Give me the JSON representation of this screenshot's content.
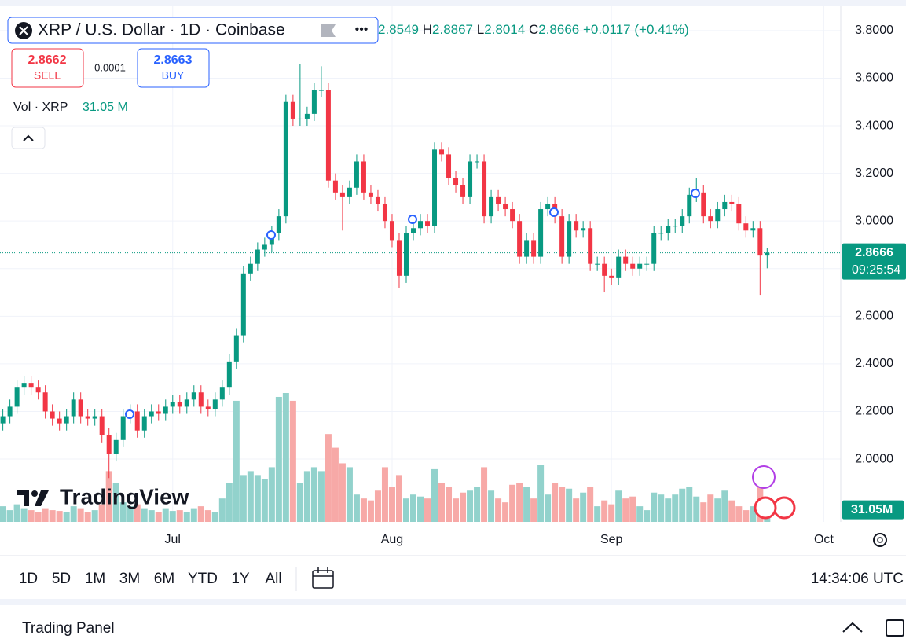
{
  "header": {
    "symbol_title": "XRP / U.S. Dollar · 1D · Coinbase",
    "high_prefix": "H",
    "low_prefix": "L",
    "close_prefix": "C",
    "change": "+0.0117 (+0.41%)"
  },
  "trade": {
    "sell_price": 2.8662,
    "sell_label": "SELL",
    "spread": 0.0001,
    "buy_price": 2.8663,
    "buy_label": "BUY"
  },
  "volume_legend": {
    "title": "Vol · XRP",
    "value": {
      "value": 31.05,
      "label": "31.05 M"
    }
  },
  "volume_tag": {
    "value": 31.05,
    "label": "31.05M"
  },
  "countdown": "09:25:54",
  "logo": "TradingView",
  "ranges": [
    "1D",
    "5D",
    "1M",
    "3M",
    "6M",
    "YTD",
    "1Y",
    "All"
  ],
  "clock": "14:34:06 UTC",
  "panel_title": "Trading Panel",
  "chart_data": {
    "type": "candlestick",
    "up_color": "#089981",
    "down_color": "#f23645",
    "volume_up_color": "#92d2cc",
    "volume_down_color": "#f7a9a7",
    "xlim": [
      -0.4,
      118.4
    ],
    "xticks": [
      {
        "value": 24,
        "label": "Jul"
      },
      {
        "value": 55,
        "label": "Aug"
      },
      {
        "value": 86,
        "label": "Sep"
      },
      {
        "value": 116,
        "label": "Oct"
      }
    ],
    "ylim": [
      1.736,
      3.902
    ],
    "yticks": [
      {
        "value": 2.0,
        "label": "2.0000"
      },
      {
        "value": 2.2,
        "label": "2.2000"
      },
      {
        "value": 2.4,
        "label": "2.4000"
      },
      {
        "value": 2.6,
        "label": "2.6000"
      },
      {
        "value": 2.8,
        "label": "2.8000"
      },
      {
        "value": 3.0,
        "label": "3.0000"
      },
      {
        "value": 3.2,
        "label": "3.2000"
      },
      {
        "value": 3.4,
        "label": "3.4000"
      },
      {
        "value": 3.6,
        "label": "3.6000"
      },
      {
        "value": 3.8,
        "label": "3.8000"
      }
    ],
    "grid": true,
    "open": [
      2.15,
      2.18,
      2.22,
      2.3,
      2.32,
      2.3,
      2.28,
      2.2,
      2.17,
      2.15,
      2.18,
      2.25,
      2.18,
      2.17,
      2.18,
      2.1,
      2.02,
      2.08,
      2.18,
      2.2,
      2.12,
      2.18,
      2.2,
      2.19,
      2.22,
      2.24,
      2.22,
      2.25,
      2.28,
      2.22,
      2.21,
      2.25,
      2.3,
      2.41,
      2.52,
      2.78,
      2.82,
      2.88,
      2.9,
      2.95,
      3.02,
      3.5,
      3.43,
      3.43,
      3.45,
      3.55,
      3.55,
      3.17,
      3.12,
      3.1,
      3.14,
      3.25,
      3.12,
      3.1,
      3.07,
      3.0,
      2.92,
      2.77,
      2.95,
      2.97,
      3.0,
      2.98,
      3.3,
      3.28,
      3.18,
      3.15,
      3.1,
      3.25,
      3.25,
      3.02,
      3.1,
      3.07,
      3.05,
      3.0,
      2.85,
      2.92,
      2.85,
      3.05,
      3.07,
      3.02,
      2.85,
      3.0,
      2.96,
      2.97,
      2.82,
      2.82,
      2.77,
      2.76,
      2.85,
      2.82,
      2.8,
      2.82,
      2.82,
      2.95,
      2.95,
      2.98,
      2.98,
      3.02,
      3.11,
      3.12,
      3.02,
      3.0,
      3.05,
      3.08,
      3.07,
      2.99,
      2.96,
      2.97,
      2.8549
    ],
    "high": [
      2.21,
      2.25,
      2.33,
      2.35,
      2.35,
      2.33,
      2.31,
      2.23,
      2.2,
      2.21,
      2.28,
      2.28,
      2.21,
      2.21,
      2.21,
      2.13,
      2.11,
      2.21,
      2.23,
      2.23,
      2.21,
      2.23,
      2.23,
      2.25,
      2.27,
      2.27,
      2.28,
      2.31,
      2.31,
      2.25,
      2.28,
      2.33,
      2.44,
      2.55,
      2.81,
      2.85,
      2.91,
      2.93,
      2.98,
      3.05,
      3.53,
      3.53,
      3.66,
      3.48,
      3.58,
      3.65,
      3.58,
      3.2,
      3.15,
      3.17,
      3.28,
      3.28,
      3.15,
      3.13,
      3.1,
      3.03,
      2.95,
      2.98,
      3.0,
      3.03,
      3.03,
      3.33,
      3.33,
      3.31,
      3.21,
      3.18,
      3.28,
      3.28,
      3.28,
      3.13,
      3.13,
      3.1,
      3.08,
      3.03,
      2.95,
      2.95,
      3.08,
      3.1,
      3.1,
      3.05,
      3.03,
      3.03,
      3.0,
      3.0,
      2.85,
      2.85,
      2.8,
      2.88,
      2.88,
      2.85,
      2.85,
      2.85,
      2.98,
      2.98,
      3.01,
      3.01,
      3.05,
      3.14,
      3.18,
      3.15,
      3.05,
      3.08,
      3.11,
      3.11,
      3.1,
      3.02,
      3.0,
      3.0,
      2.8867
    ],
    "low": [
      2.12,
      2.15,
      2.19,
      2.27,
      2.27,
      2.25,
      2.17,
      2.14,
      2.12,
      2.12,
      2.15,
      2.15,
      2.14,
      2.14,
      2.07,
      1.92,
      1.99,
      2.05,
      2.15,
      2.09,
      2.09,
      2.15,
      2.16,
      2.16,
      2.19,
      2.19,
      2.19,
      2.22,
      2.19,
      2.18,
      2.18,
      2.22,
      2.27,
      2.38,
      2.49,
      2.75,
      2.79,
      2.85,
      2.87,
      2.92,
      2.99,
      3.4,
      3.4,
      3.4,
      3.42,
      3.52,
      3.14,
      3.09,
      2.96,
      3.07,
      3.11,
      3.09,
      3.07,
      3.04,
      2.97,
      2.89,
      2.72,
      2.74,
      2.92,
      2.94,
      2.95,
      2.95,
      3.25,
      3.15,
      3.12,
      3.07,
      3.07,
      3.22,
      2.99,
      2.99,
      3.04,
      3.02,
      2.97,
      2.82,
      2.82,
      2.82,
      2.82,
      3.02,
      2.99,
      2.82,
      2.82,
      2.93,
      2.93,
      2.79,
      2.79,
      2.7,
      2.73,
      2.73,
      2.79,
      2.77,
      2.77,
      2.79,
      2.79,
      2.92,
      2.92,
      2.95,
      2.95,
      2.99,
      3.08,
      2.99,
      2.97,
      2.97,
      3.02,
      3.04,
      2.96,
      2.93,
      2.93,
      2.69,
      2.8014
    ],
    "close": [
      2.18,
      2.22,
      2.3,
      2.32,
      2.3,
      2.28,
      2.2,
      2.17,
      2.15,
      2.18,
      2.25,
      2.18,
      2.17,
      2.18,
      2.1,
      2.02,
      2.08,
      2.18,
      2.2,
      2.12,
      2.18,
      2.2,
      2.19,
      2.22,
      2.24,
      2.22,
      2.25,
      2.28,
      2.22,
      2.21,
      2.25,
      2.3,
      2.41,
      2.52,
      2.78,
      2.82,
      2.88,
      2.9,
      2.95,
      3.02,
      3.5,
      3.43,
      3.43,
      3.45,
      3.55,
      3.55,
      3.17,
      3.12,
      3.1,
      3.14,
      3.25,
      3.12,
      3.1,
      3.07,
      3.0,
      2.92,
      2.77,
      2.95,
      2.97,
      3.0,
      2.98,
      3.3,
      3.28,
      3.18,
      3.15,
      3.1,
      3.25,
      3.25,
      3.02,
      3.1,
      3.07,
      3.05,
      3.0,
      2.85,
      2.92,
      2.85,
      3.05,
      3.07,
      3.02,
      2.85,
      3.0,
      2.96,
      2.97,
      2.82,
      2.82,
      2.77,
      2.76,
      2.85,
      2.82,
      2.8,
      2.82,
      2.82,
      2.95,
      2.95,
      2.98,
      2.98,
      3.02,
      3.11,
      3.12,
      3.02,
      3.0,
      3.05,
      3.08,
      3.07,
      2.99,
      2.96,
      2.97,
      2.8549,
      2.8666
    ],
    "volume": [
      40,
      30,
      45,
      35,
      30,
      25,
      35,
      30,
      28,
      25,
      40,
      35,
      25,
      30,
      45,
      130,
      100,
      50,
      40,
      45,
      35,
      30,
      25,
      35,
      28,
      30,
      25,
      35,
      40,
      30,
      25,
      60,
      100,
      310,
      120,
      130,
      120,
      110,
      140,
      320,
      330,
      310,
      100,
      130,
      140,
      130,
      225,
      190,
      150,
      140,
      70,
      60,
      55,
      80,
      140,
      90,
      120,
      60,
      70,
      65,
      60,
      135,
      100,
      90,
      60,
      75,
      80,
      90,
      140,
      80,
      60,
      50,
      95,
      100,
      90,
      60,
      145,
      70,
      100,
      90,
      85,
      60,
      75,
      90,
      40,
      55,
      45,
      80,
      60,
      65,
      40,
      30,
      75,
      70,
      60,
      70,
      85,
      90,
      65,
      50,
      70,
      60,
      80,
      55,
      40,
      30,
      40,
      105,
      31.05
    ]
  }
}
